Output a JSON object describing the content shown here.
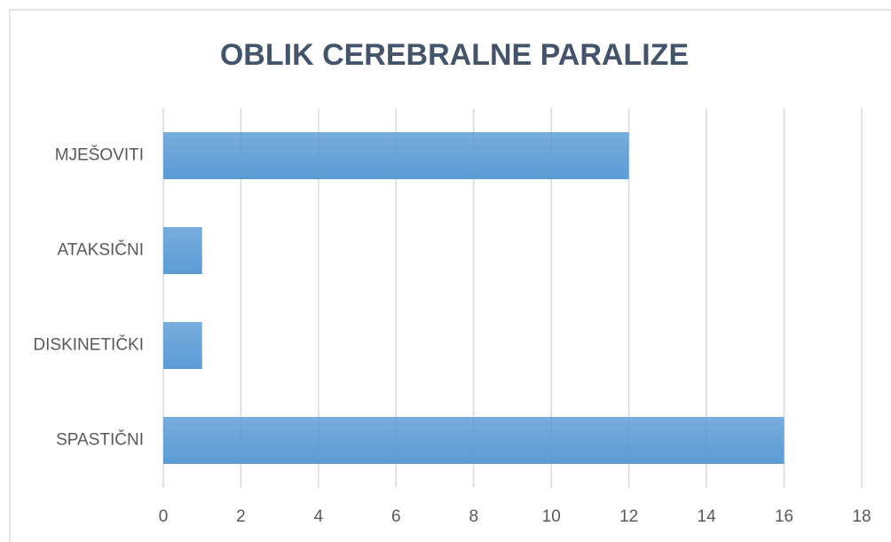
{
  "chart_data": {
    "type": "bar",
    "orientation": "horizontal",
    "title": "OBLIK CEREBRALNE PARALIZE",
    "categories": [
      "MJEŠOVITI",
      "ATAKSIČNI",
      "DISKINETIČKI",
      "SPASTIČNI"
    ],
    "values": [
      12,
      1,
      1,
      16
    ],
    "color": "#5b9bd5",
    "xlim": [
      0,
      18
    ],
    "xticks": [
      0,
      2,
      4,
      6,
      8,
      10,
      12,
      14,
      16,
      18
    ],
    "grid": true
  }
}
